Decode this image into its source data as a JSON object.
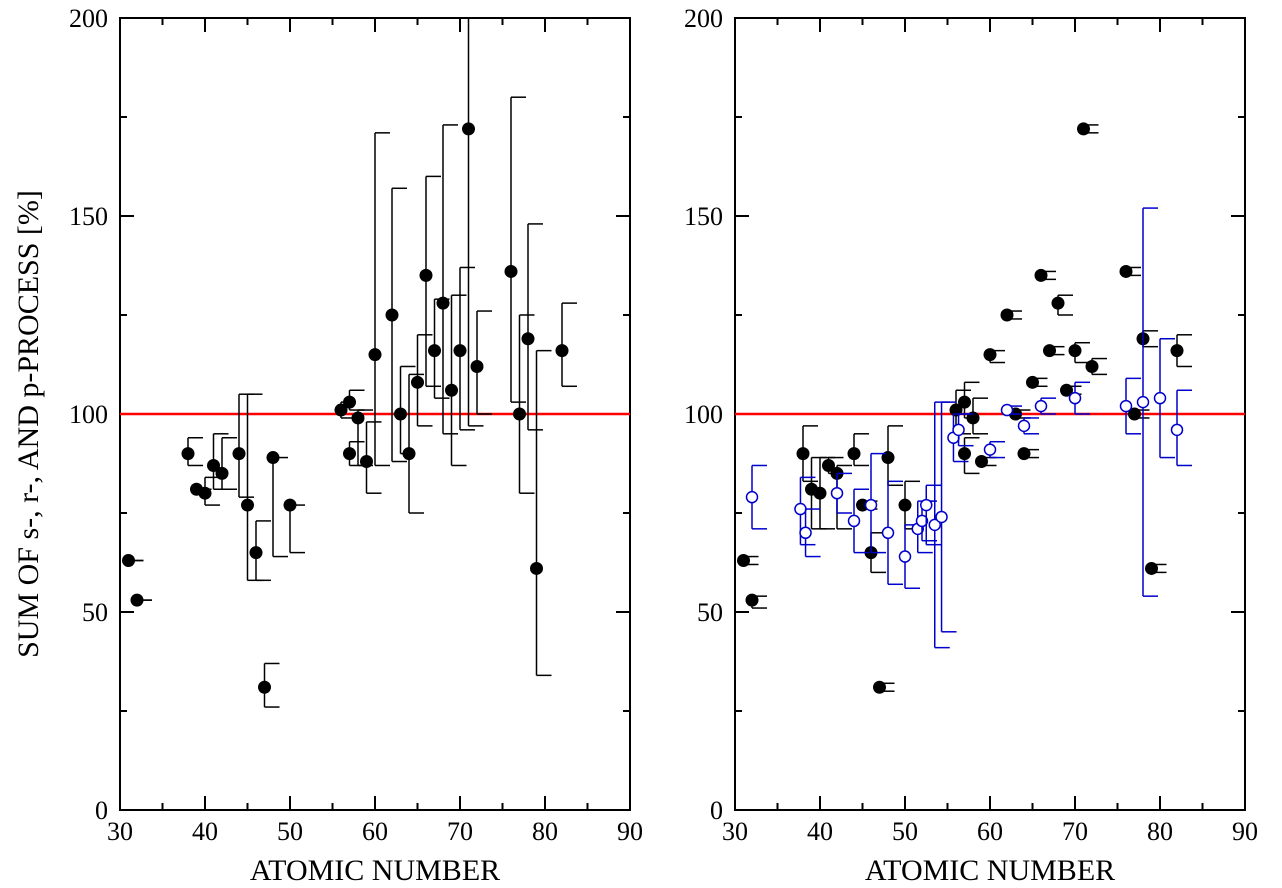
{
  "chart_data": [
    {
      "type": "scatter",
      "xlabel": "ATOMIC NUMBER",
      "ylabel": "SUM OF s-, r-, AND p-PROCESS [%]",
      "xlim": [
        30,
        90
      ],
      "ylim": [
        0,
        200
      ],
      "x_ticks": [
        "30",
        "40",
        "50",
        "60",
        "70",
        "80",
        "90"
      ],
      "y_ticks": [
        "0",
        "50",
        "100",
        "150",
        "200"
      ],
      "reference_line": {
        "y": 100,
        "color": "#ff0000"
      },
      "series": [
        {
          "marker": "filled-circle",
          "color": "#000000",
          "points": [
            {
              "x": 31,
              "y": 63,
              "lo": 63,
              "hi": 63
            },
            {
              "x": 32,
              "y": 53,
              "lo": 53,
              "hi": 53
            },
            {
              "x": 38,
              "y": 90,
              "lo": 87,
              "hi": 94
            },
            {
              "x": 39,
              "y": 81,
              "lo": 81,
              "hi": 81
            },
            {
              "x": 40,
              "y": 80,
              "lo": 77,
              "hi": 84
            },
            {
              "x": 41,
              "y": 87,
              "lo": 81,
              "hi": 95
            },
            {
              "x": 42,
              "y": 85,
              "lo": 81,
              "hi": 94
            },
            {
              "x": 44,
              "y": 90,
              "lo": 79,
              "hi": 105
            },
            {
              "x": 45,
              "y": 77,
              "lo": 58,
              "hi": 105
            },
            {
              "x": 46,
              "y": 65,
              "lo": 58,
              "hi": 73
            },
            {
              "x": 47,
              "y": 31,
              "lo": 26,
              "hi": 37
            },
            {
              "x": 48,
              "y": 89,
              "lo": 64,
              "hi": 89
            },
            {
              "x": 50,
              "y": 77,
              "lo": 65,
              "hi": 77
            },
            {
              "x": 56,
              "y": 101,
              "lo": 99,
              "hi": 103
            },
            {
              "x": 57,
              "y": 103,
              "lo": 101,
              "hi": 106
            },
            {
              "x": 57,
              "y": 90,
              "lo": 87,
              "hi": 93
            },
            {
              "x": 58,
              "y": 99,
              "lo": 87,
              "hi": 101
            },
            {
              "x": 59,
              "y": 88,
              "lo": 80,
              "hi": 98
            },
            {
              "x": 60,
              "y": 115,
              "lo": 87,
              "hi": 171
            },
            {
              "x": 62,
              "y": 125,
              "lo": 88,
              "hi": 157
            },
            {
              "x": 63,
              "y": 100,
              "lo": 90,
              "hi": 112
            },
            {
              "x": 64,
              "y": 90,
              "lo": 75,
              "hi": 110
            },
            {
              "x": 65,
              "y": 108,
              "lo": 97,
              "hi": 120
            },
            {
              "x": 66,
              "y": 135,
              "lo": 107,
              "hi": 160
            },
            {
              "x": 67,
              "y": 116,
              "lo": 104,
              "hi": 129
            },
            {
              "x": 68,
              "y": 128,
              "lo": 95,
              "hi": 173
            },
            {
              "x": 69,
              "y": 106,
              "lo": 87,
              "hi": 130
            },
            {
              "x": 70,
              "y": 116,
              "lo": 96,
              "hi": 137
            },
            {
              "x": 71,
              "y": 172,
              "lo": 97,
              "hi": 200
            },
            {
              "x": 72,
              "y": 112,
              "lo": 100,
              "hi": 126
            },
            {
              "x": 76,
              "y": 136,
              "lo": 103,
              "hi": 180
            },
            {
              "x": 77,
              "y": 100,
              "lo": 80,
              "hi": 125
            },
            {
              "x": 78,
              "y": 119,
              "lo": 96,
              "hi": 148
            },
            {
              "x": 79,
              "y": 61,
              "lo": 34,
              "hi": 116
            },
            {
              "x": 82,
              "y": 116,
              "lo": 107,
              "hi": 128
            }
          ]
        }
      ]
    },
    {
      "type": "scatter",
      "xlabel": "ATOMIC NUMBER",
      "ylabel": "",
      "xlim": [
        30,
        90
      ],
      "ylim": [
        0,
        200
      ],
      "x_ticks": [
        "30",
        "40",
        "50",
        "60",
        "70",
        "80",
        "90"
      ],
      "y_ticks": [
        "0",
        "50",
        "100",
        "150",
        "200"
      ],
      "reference_line": {
        "y": 100,
        "color": "#ff0000"
      },
      "series": [
        {
          "marker": "filled-circle",
          "color": "#000000",
          "points": [
            {
              "x": 31,
              "y": 63,
              "lo": 62,
              "hi": 64
            },
            {
              "x": 32,
              "y": 53,
              "lo": 51,
              "hi": 54
            },
            {
              "x": 38,
              "y": 90,
              "lo": 83,
              "hi": 97
            },
            {
              "x": 39,
              "y": 81,
              "lo": 71,
              "hi": 89
            },
            {
              "x": 40,
              "y": 80,
              "lo": 71,
              "hi": 89
            },
            {
              "x": 41,
              "y": 87,
              "lo": 85,
              "hi": 89
            },
            {
              "x": 42,
              "y": 85,
              "lo": 71,
              "hi": 87
            },
            {
              "x": 44,
              "y": 90,
              "lo": 87,
              "hi": 95
            },
            {
              "x": 45,
              "y": 77,
              "lo": 76,
              "hi": 78
            },
            {
              "x": 46,
              "y": 65,
              "lo": 60,
              "hi": 70
            },
            {
              "x": 47,
              "y": 31,
              "lo": 30,
              "hi": 32
            },
            {
              "x": 48,
              "y": 89,
              "lo": 82,
              "hi": 97
            },
            {
              "x": 50,
              "y": 77,
              "lo": 71,
              "hi": 83
            },
            {
              "x": 56,
              "y": 101,
              "lo": 95,
              "hi": 106
            },
            {
              "x": 57,
              "y": 103,
              "lo": 99,
              "hi": 108
            },
            {
              "x": 57,
              "y": 90,
              "lo": 85,
              "hi": 94
            },
            {
              "x": 58,
              "y": 99,
              "lo": 95,
              "hi": 104
            },
            {
              "x": 59,
              "y": 88,
              "lo": 87,
              "hi": 89
            },
            {
              "x": 60,
              "y": 115,
              "lo": 113,
              "hi": 116
            },
            {
              "x": 62,
              "y": 125,
              "lo": 124,
              "hi": 126
            },
            {
              "x": 63,
              "y": 100,
              "lo": 99,
              "hi": 101
            },
            {
              "x": 64,
              "y": 90,
              "lo": 89,
              "hi": 91
            },
            {
              "x": 65,
              "y": 108,
              "lo": 107,
              "hi": 109
            },
            {
              "x": 66,
              "y": 135,
              "lo": 134,
              "hi": 136
            },
            {
              "x": 67,
              "y": 116,
              "lo": 115,
              "hi": 117
            },
            {
              "x": 68,
              "y": 128,
              "lo": 125,
              "hi": 130
            },
            {
              "x": 69,
              "y": 106,
              "lo": 105,
              "hi": 107
            },
            {
              "x": 70,
              "y": 116,
              "lo": 113,
              "hi": 118
            },
            {
              "x": 71,
              "y": 172,
              "lo": 171,
              "hi": 173
            },
            {
              "x": 72,
              "y": 112,
              "lo": 110,
              "hi": 114
            },
            {
              "x": 76,
              "y": 136,
              "lo": 135,
              "hi": 137
            },
            {
              "x": 77,
              "y": 100,
              "lo": 99,
              "hi": 101
            },
            {
              "x": 78,
              "y": 119,
              "lo": 117,
              "hi": 121
            },
            {
              "x": 79,
              "y": 61,
              "lo": 60,
              "hi": 62
            },
            {
              "x": 82,
              "y": 116,
              "lo": 112,
              "hi": 120
            }
          ]
        },
        {
          "marker": "open-circle",
          "color": "#0000cc",
          "points": [
            {
              "x": 32,
              "y": 79,
              "lo": 71,
              "hi": 87
            },
            {
              "x": 37.7,
              "y": 76,
              "lo": 67,
              "hi": 84
            },
            {
              "x": 38.3,
              "y": 70,
              "lo": 64,
              "hi": 76
            },
            {
              "x": 42,
              "y": 80,
              "lo": 75,
              "hi": 85
            },
            {
              "x": 44,
              "y": 73,
              "lo": 65,
              "hi": 81
            },
            {
              "x": 46,
              "y": 77,
              "lo": 65,
              "hi": 90
            },
            {
              "x": 48,
              "y": 70,
              "lo": 57,
              "hi": 83
            },
            {
              "x": 50,
              "y": 64,
              "lo": 56,
              "hi": 72
            },
            {
              "x": 51.5,
              "y": 71,
              "lo": 65,
              "hi": 78
            },
            {
              "x": 52,
              "y": 73,
              "lo": 68,
              "hi": 78
            },
            {
              "x": 52.5,
              "y": 77,
              "lo": 67,
              "hi": 82
            },
            {
              "x": 53.5,
              "y": 72,
              "lo": 41,
              "hi": 103
            },
            {
              "x": 54.3,
              "y": 74,
              "lo": 45,
              "hi": 103
            },
            {
              "x": 55.7,
              "y": 94,
              "lo": 88,
              "hi": 100
            },
            {
              "x": 56.3,
              "y": 96,
              "lo": 92,
              "hi": 100
            },
            {
              "x": 60,
              "y": 91,
              "lo": 89,
              "hi": 93
            },
            {
              "x": 62,
              "y": 101,
              "lo": 100,
              "hi": 102
            },
            {
              "x": 64,
              "y": 97,
              "lo": 95,
              "hi": 99
            },
            {
              "x": 66,
              "y": 102,
              "lo": 100,
              "hi": 104
            },
            {
              "x": 70,
              "y": 104,
              "lo": 100,
              "hi": 108
            },
            {
              "x": 76,
              "y": 102,
              "lo": 95,
              "hi": 109
            },
            {
              "x": 78,
              "y": 103,
              "lo": 54,
              "hi": 152
            },
            {
              "x": 80,
              "y": 104,
              "lo": 89,
              "hi": 119
            },
            {
              "x": 82,
              "y": 96,
              "lo": 87,
              "hi": 106
            }
          ]
        }
      ]
    }
  ]
}
